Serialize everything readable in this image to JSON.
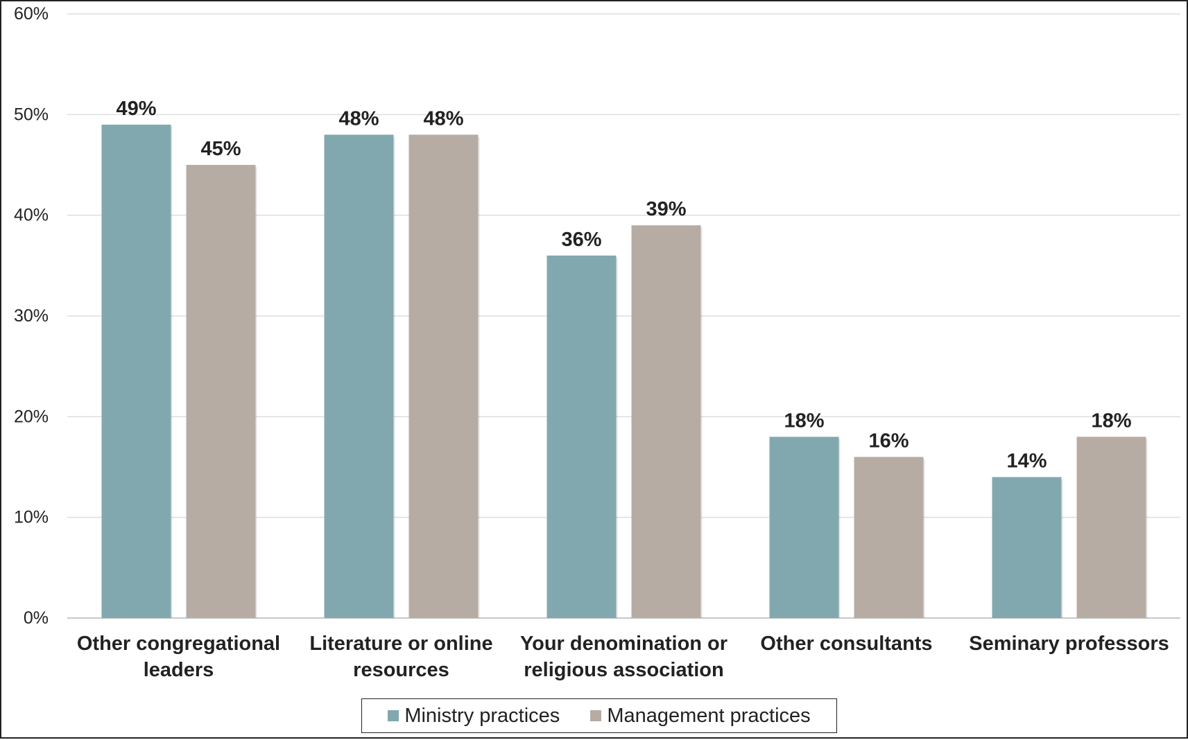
{
  "chart_data": {
    "type": "bar",
    "title": "",
    "xlabel": "",
    "ylabel": "",
    "categories": [
      [
        "Other congregational",
        "leaders"
      ],
      [
        "Literature or online",
        "resources"
      ],
      [
        "Your denomination or",
        "religious association"
      ],
      [
        "Other consultants"
      ],
      [
        "Seminary professors"
      ]
    ],
    "series": [
      {
        "name": "Ministry practices",
        "color": "#81a8ae",
        "values": [
          49,
          48,
          36,
          18,
          14
        ]
      },
      {
        "name": "Management practices",
        "color": "#b6aca4",
        "values": [
          45,
          48,
          39,
          16,
          18
        ]
      }
    ],
    "ylim": [
      0,
      60
    ],
    "yticks": [
      0,
      10,
      20,
      30,
      40,
      50,
      60
    ],
    "tick_suffix": "%",
    "value_suffix": "%",
    "grid": true,
    "legend": "bottom"
  }
}
